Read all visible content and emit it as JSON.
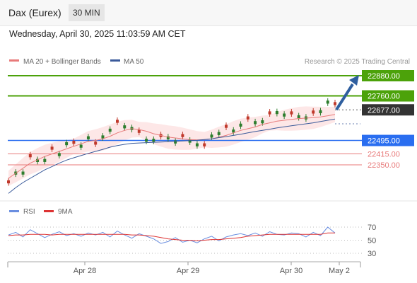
{
  "header": {
    "title": "Dax (Eurex)",
    "timeframe": "30 MIN"
  },
  "timestamp": "Wednesday, April 30, 2025 11:03:59 AM CET",
  "legend": {
    "ma20": "MA 20 + Bollinger Bands",
    "ma50": "MA 50",
    "copyright": "Research © 2025 Trading Central",
    "rsi": "RSI",
    "rsi_ma": "9MA"
  },
  "colors": {
    "green_level": "#4ca20a",
    "blue_level": "#2a6ef0",
    "red_level": "#e87a7a",
    "ma20": "#e87a7a",
    "ma50": "#3a5a9a",
    "band_fill": "#fde3e3",
    "candle_up": "#2d7d2d",
    "candle_down": "#c0392b",
    "current": "#333333",
    "arrow": "#2f5f9f",
    "rsi": "#6a8ee0",
    "rsi_ma": "#dd3333"
  },
  "chart_data": [
    {
      "type": "line",
      "title": "Dax (Eurex) 30 MIN",
      "x_ticks": [
        "Apr 28",
        "Apr 29",
        "Apr 30",
        "May 2"
      ],
      "levels": [
        {
          "value": 22880.0,
          "label": "22880.00",
          "kind": "resistance"
        },
        {
          "value": 22760.0,
          "label": "22760.00",
          "kind": "resistance"
        },
        {
          "value": 22677.0,
          "label": "22677.00",
          "kind": "current"
        },
        {
          "value": 22495.0,
          "label": "22495.00",
          "kind": "pivot"
        },
        {
          "value": 22415.0,
          "label": "22415.00",
          "kind": "support"
        },
        {
          "value": 22350.0,
          "label": "22350.00",
          "kind": "support"
        }
      ],
      "series": [
        {
          "name": "MA 20 + Bollinger Bands",
          "values": [
            22270,
            22300,
            22330,
            22360,
            22380,
            22400,
            22415,
            22430,
            22445,
            22460,
            22475,
            22490,
            22495,
            22505,
            22520,
            22540,
            22555,
            22565,
            22560,
            22550,
            22535,
            22525,
            22515,
            22510,
            22505,
            22500,
            22498,
            22500,
            22505,
            22515,
            22525,
            22540,
            22555,
            22565,
            22575,
            22590,
            22600,
            22610,
            22615,
            22620,
            22625,
            22628,
            22630,
            22635,
            22642,
            22650
          ]
        },
        {
          "name": "MA 50",
          "values": [
            22180,
            22215,
            22245,
            22270,
            22295,
            22320,
            22340,
            22360,
            22378,
            22392,
            22405,
            22418,
            22430,
            22442,
            22455,
            22465,
            22472,
            22478,
            22480,
            22482,
            22484,
            22486,
            22488,
            22490,
            22492,
            22494,
            22496,
            22500,
            22505,
            22512,
            22518,
            22525,
            22532,
            22540,
            22548,
            22555,
            22562,
            22570,
            22576,
            22582,
            22588,
            22594,
            22600,
            22608,
            22615,
            22622
          ]
        }
      ],
      "ylim": [
        22150,
        22950
      ]
    },
    {
      "type": "line",
      "title": "RSI",
      "y_ticks": [
        70,
        50,
        30
      ],
      "ylim": [
        20,
        80
      ],
      "series": [
        {
          "name": "RSI",
          "values": [
            58,
            62,
            55,
            66,
            60,
            54,
            59,
            63,
            57,
            60,
            56,
            61,
            58,
            62,
            55,
            64,
            58,
            53,
            60,
            56,
            52,
            45,
            48,
            54,
            47,
            50,
            46,
            52,
            56,
            49,
            55,
            58,
            60,
            57,
            61,
            56,
            63,
            59,
            58,
            61,
            60,
            55,
            62,
            57,
            70,
            61
          ]
        },
        {
          "name": "9MA",
          "values": [
            57,
            58,
            58,
            59,
            59,
            59,
            58,
            59,
            59,
            59,
            59,
            59,
            59,
            59,
            59,
            59,
            59,
            58,
            58,
            57,
            56,
            54,
            52,
            51,
            50,
            50,
            49,
            50,
            51,
            51,
            52,
            53,
            54,
            56,
            57,
            58,
            59,
            59,
            59,
            59,
            59,
            59,
            59,
            59,
            61,
            61
          ]
        }
      ]
    }
  ]
}
